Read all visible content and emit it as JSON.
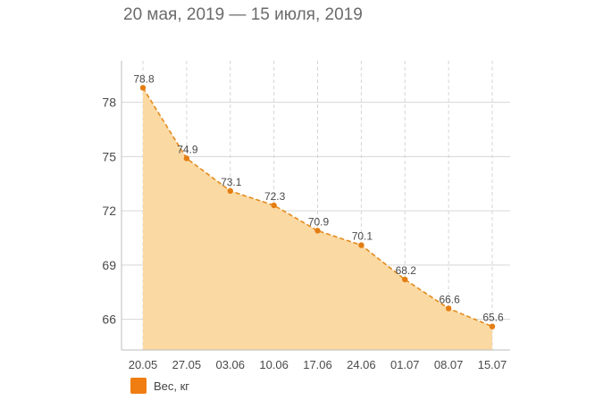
{
  "header": {
    "date_range": "20 мая, 2019 — 15 июля, 2019"
  },
  "legend": {
    "label": "Вес, кг",
    "icon": "orange-square-swatch"
  },
  "colors": {
    "series_line": "#e38b1e",
    "series_point": "#e47d12",
    "area_fill": "#fbd9a3",
    "legend_swatch": "#ef7d11",
    "grid": "#d6d6d6",
    "axis_text": "#4a4a4a",
    "title_text": "#6b6b6b"
  },
  "chart_data": {
    "type": "area",
    "title": "",
    "xlabel": "",
    "ylabel": "",
    "categories": [
      "20.05",
      "27.05",
      "03.06",
      "10.06",
      "17.06",
      "24.06",
      "01.07",
      "08.07",
      "15.07"
    ],
    "series": [
      {
        "name": "Вес, кг",
        "values": [
          78.8,
          74.9,
          73.1,
          72.3,
          70.9,
          70.1,
          68.2,
          66.6,
          65.6
        ],
        "data_labels": [
          "78.8",
          "74.9",
          "73.1",
          "72.3",
          "70.9",
          "70.1",
          "68.2",
          "66.6",
          "65.6"
        ]
      }
    ],
    "yticks": [
      66,
      69,
      72,
      75,
      78
    ],
    "ylim": [
      64.3,
      80.3
    ],
    "grid": {
      "vertical": "dashed",
      "horizontal": "solid"
    },
    "line_style": "dashed",
    "markers": true,
    "legend_position": "bottom-left"
  }
}
